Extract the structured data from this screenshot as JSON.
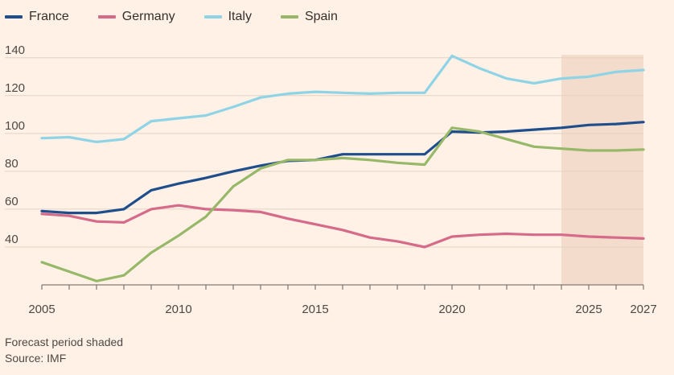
{
  "chart_data": {
    "type": "line",
    "x": [
      2005,
      2006,
      2007,
      2008,
      2009,
      2010,
      2011,
      2012,
      2013,
      2014,
      2015,
      2016,
      2017,
      2018,
      2019,
      2020,
      2021,
      2022,
      2023,
      2024,
      2025,
      2026,
      2027
    ],
    "series": [
      {
        "name": "France",
        "color": "#1f4e8c",
        "values": [
          59,
          58,
          58,
          60,
          70,
          73.5,
          76.5,
          80,
          83,
          85.5,
          86,
          89,
          89,
          89,
          89,
          101,
          100.5,
          101,
          102,
          103,
          104.5,
          105,
          106
        ]
      },
      {
        "name": "Germany",
        "color": "#d66a8a",
        "values": [
          57.5,
          56.5,
          53.5,
          53,
          60,
          62,
          60,
          59.5,
          58.5,
          55,
          52,
          49,
          45,
          43,
          40,
          45.5,
          46.5,
          47,
          46.5,
          46.5,
          45.5,
          45,
          44.5
        ]
      },
      {
        "name": "Italy",
        "color": "#8fd4e6",
        "values": [
          97.5,
          98,
          95.5,
          97,
          106.5,
          108,
          109.5,
          114,
          119,
          121,
          122,
          121.5,
          121,
          121.5,
          121.5,
          141,
          134.5,
          129,
          126.5,
          129,
          130,
          132.5,
          133.5
        ]
      },
      {
        "name": "Spain",
        "color": "#96b868",
        "values": [
          32,
          27,
          22,
          25,
          37,
          46,
          56,
          72,
          81.5,
          86,
          86,
          87,
          86,
          84.5,
          83.5,
          103,
          101,
          97,
          93,
          92,
          91,
          91,
          91.5
        ]
      }
    ],
    "xlim": [
      2005,
      2027
    ],
    "ylim": [
      20,
      145
    ],
    "yticks": [
      40,
      60,
      80,
      100,
      120,
      140
    ],
    "xticks": [
      2005,
      2010,
      2015,
      2020,
      2025,
      2027
    ],
    "forecast_start": 2024,
    "grid": true,
    "legend_position": "top-left"
  },
  "notes": {
    "forecast": "Forecast period shaded",
    "source": "Source: IMF"
  }
}
